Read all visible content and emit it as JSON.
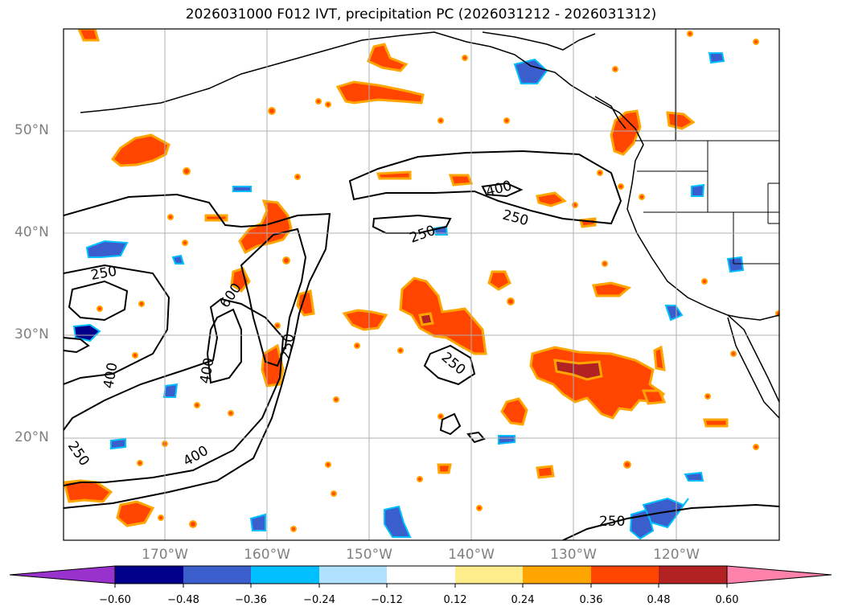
{
  "title": "2026031000 F012 IVT, precipitation PC (2026031212 - 2026031312)",
  "map": {
    "lat_labels": [
      "50°N",
      "40°N",
      "30°N",
      "20°N"
    ],
    "lon_labels": [
      "170°W",
      "160°W",
      "150°W",
      "140°W",
      "130°W",
      "120°W"
    ],
    "ivt_contour_labels": [
      "400",
      "250",
      "250",
      "250",
      "600",
      "400",
      "400",
      "250",
      "250",
      "250",
      "400",
      "250"
    ]
  },
  "colorbar": {
    "ticks": [
      "−0.60",
      "−0.48",
      "−0.36",
      "−0.24",
      "−0.12",
      "0.12",
      "0.24",
      "0.36",
      "0.48",
      "0.60"
    ],
    "colors": {
      "under": "#9932CC",
      "bins": [
        "#00008B",
        "#3A5FCD",
        "#00BFFF",
        "#B0E2FF",
        "#FFFFFF",
        "#FFEC8B",
        "#FFA500",
        "#FF4500",
        "#B22222"
      ],
      "over": "#FF82AB"
    }
  }
}
